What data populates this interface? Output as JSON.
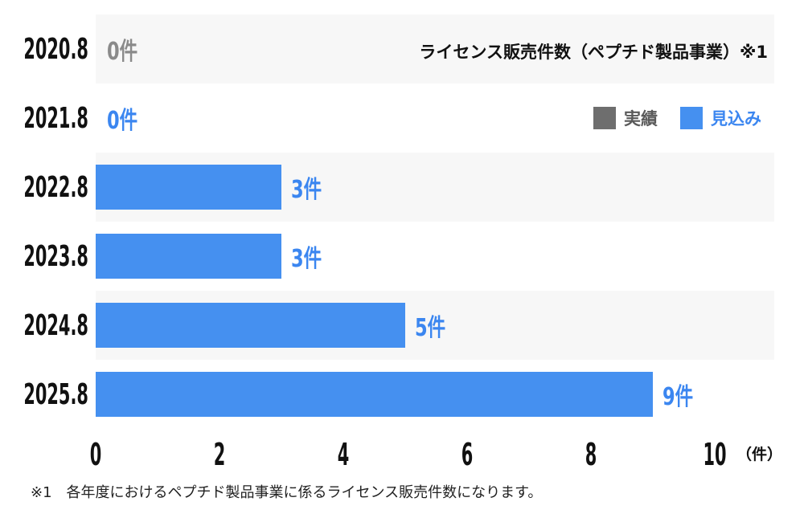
{
  "title": "ライセンス販売件数（ペプチド製品事業）※1",
  "legend": [
    {
      "label": "実績",
      "swatch_color": "#6E6E6E",
      "label_color": "#5A5A5A"
    },
    {
      "label": "見込み",
      "swatch_color": "#4590F0",
      "label_color": "#3B86F0"
    }
  ],
  "footnote": "※1　各年度におけるペプチド製品事業に係るライセンス販売件数になります。",
  "colors": {
    "bar_blue": "#4590F0",
    "value_text_blue": "#3B86F0",
    "value_text_gray": "#8A8A8A",
    "row_band_gray": "#F7F7F7",
    "label_black": "#111111",
    "background": "#FFFFFF"
  },
  "chart_data": {
    "type": "bar",
    "orientation": "horizontal",
    "title": "ライセンス販売件数（ペプチド製品事業）※1",
    "categories": [
      "2020.8",
      "2021.8",
      "2022.8",
      "2023.8",
      "2024.8",
      "2025.8"
    ],
    "values": [
      0,
      0,
      3,
      3,
      5,
      9
    ],
    "value_labels": [
      "0件",
      "0件",
      "3件",
      "3件",
      "5件",
      "9件"
    ],
    "row_series": [
      "実績",
      "見込み",
      "見込み",
      "見込み",
      "見込み",
      "見込み"
    ],
    "series": [
      {
        "name": "実績",
        "color": "#6E6E6E",
        "rows": [
          "2020.8"
        ]
      },
      {
        "name": "見込み",
        "color": "#4590F0",
        "rows": [
          "2021.8",
          "2022.8",
          "2023.8",
          "2024.8",
          "2025.8"
        ]
      }
    ],
    "x_ticks": [
      0,
      2,
      4,
      6,
      8,
      10
    ],
    "xlim": [
      0,
      10
    ],
    "xlabel_unit": "（件）",
    "grid": false,
    "legend_position": "upper-right",
    "row_striping": "alternating gray/white starting with gray"
  }
}
